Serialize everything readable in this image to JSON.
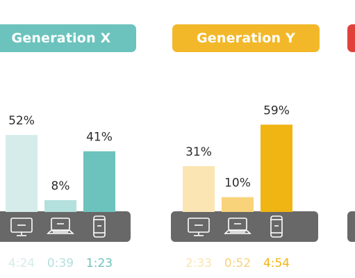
{
  "chart_data": [
    {
      "type": "bar",
      "title": "Generation X",
      "title_color": "#6cc3bd",
      "categories": [
        "computer",
        "laptop",
        "smartphone"
      ],
      "series": [
        {
          "values": [
            52,
            8,
            41
          ],
          "value_labels": [
            "52%",
            "8%",
            "41%"
          ],
          "colors": [
            "#d5ecea",
            "#b4e0dd",
            "#6cc3bd"
          ]
        }
      ],
      "times": [
        "4:24",
        "0:39",
        "1:23"
      ],
      "time_colors": [
        "#d5ecea",
        "#b4e0dd",
        "#6cc3bd"
      ]
    },
    {
      "type": "bar",
      "title": "Generation Y",
      "title_color": "#f2b82a",
      "categories": [
        "computer",
        "laptop",
        "smartphone"
      ],
      "series": [
        {
          "values": [
            31,
            10,
            59
          ],
          "value_labels": [
            "31%",
            "10%",
            "59%"
          ],
          "colors": [
            "#fae5b3",
            "#f8d37a",
            "#f0b413"
          ]
        }
      ],
      "times": [
        "2:33",
        "0:52",
        "4:54"
      ],
      "time_colors": [
        "#fae5b3",
        "#f8d37a",
        "#f0b413"
      ]
    }
  ],
  "partial_panel_color": "#e0413b",
  "device_band_color": "#686868",
  "device_icons": [
    "monitor-icon",
    "laptop-icon",
    "smartphone-icon"
  ]
}
